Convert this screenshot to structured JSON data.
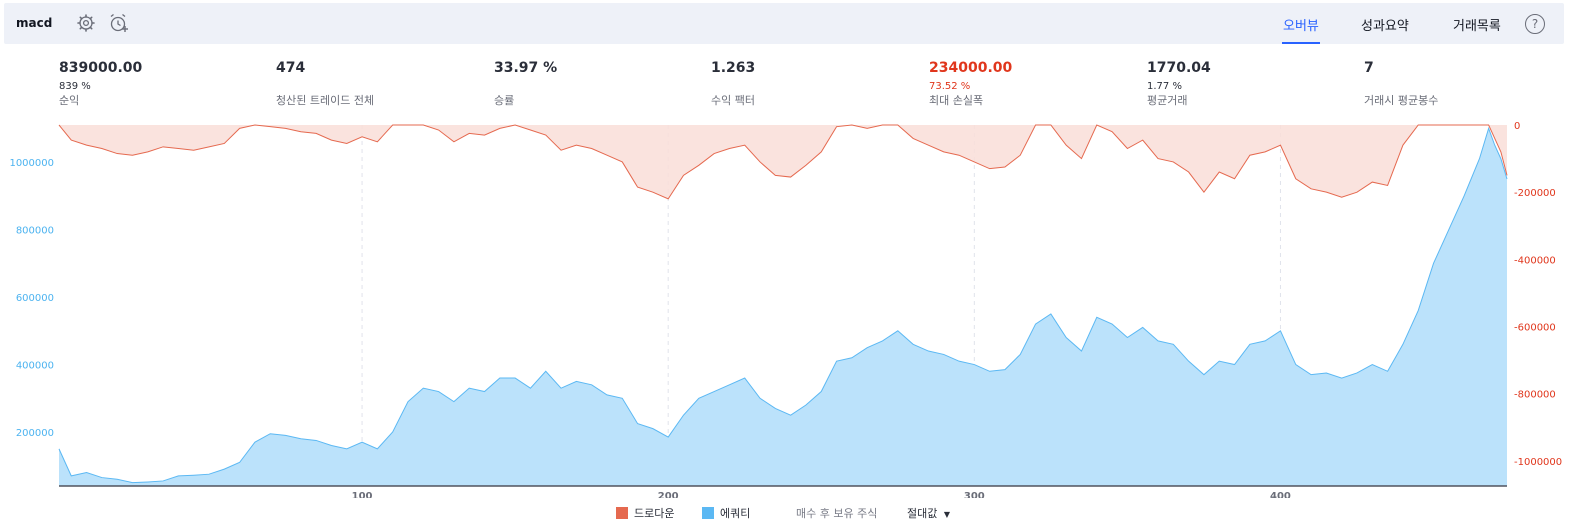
{
  "header": {
    "strategy_name": "macd",
    "tabs": [
      {
        "label": "오버뷰",
        "active": true
      },
      {
        "label": "성과요약",
        "active": false
      },
      {
        "label": "거래목록",
        "active": false
      }
    ],
    "help_label": "?"
  },
  "stats": [
    {
      "value": "839000.00",
      "sub": "839 %",
      "label": "순익"
    },
    {
      "value": "474",
      "sub": "",
      "label": "청산된 트레이드 전체"
    },
    {
      "value": "33.97 %",
      "sub": "",
      "label": "승률"
    },
    {
      "value": "1.263",
      "sub": "",
      "label": "수익 팩터"
    },
    {
      "value": "234000.00",
      "sub": "73.52 %",
      "label": "최대 손실폭",
      "highlight": true
    },
    {
      "value": "1770.04",
      "sub": "1.77 %",
      "label": "평균거래"
    },
    {
      "value": "7",
      "sub": "",
      "label": "거래시 평균봉수"
    }
  ],
  "colors": {
    "equity_line": "#5bb8f3",
    "equity_fill": "#bbe2fb",
    "drawdown_line": "#e5694f",
    "drawdown_fill": "#f9ded8",
    "left_axis_text": "#4cb3f0",
    "right_axis_text": "#e0361c",
    "accent": "#2962ff"
  },
  "legend": {
    "drawdown": "드로다운",
    "equity": "에쿼티",
    "buy_hold": "매수 후 보유 주식",
    "mode": "절대값"
  },
  "chart_data": {
    "type": "area",
    "x_ticks": [
      100,
      200,
      300,
      400
    ],
    "x_range": [
      1,
      474
    ],
    "left_axis": {
      "ticks": [
        200000,
        400000,
        600000,
        800000,
        1000000
      ],
      "labels": [
        "200000",
        "400000",
        "600000",
        "800000",
        "1000000"
      ],
      "range": [
        40000,
        1110000
      ]
    },
    "right_axis": {
      "ticks": [
        0,
        -200000,
        -400000,
        -600000,
        -800000,
        -1000000
      ],
      "labels": [
        "0",
        "-200000",
        "-400000",
        "-600000",
        "-800000",
        "-1000000"
      ],
      "range": [
        -1075000,
        0
      ]
    },
    "series": [
      {
        "name": "에쿼티",
        "axis": "left",
        "x": [
          1,
          5,
          10,
          15,
          20,
          25,
          30,
          35,
          40,
          45,
          50,
          55,
          60,
          65,
          70,
          75,
          80,
          85,
          90,
          95,
          100,
          105,
          110,
          115,
          120,
          125,
          130,
          135,
          140,
          145,
          150,
          155,
          160,
          165,
          170,
          175,
          180,
          185,
          190,
          195,
          200,
          205,
          210,
          215,
          220,
          225,
          230,
          235,
          240,
          245,
          250,
          255,
          260,
          265,
          270,
          275,
          280,
          285,
          290,
          295,
          300,
          305,
          310,
          315,
          320,
          325,
          330,
          335,
          340,
          345,
          350,
          355,
          360,
          365,
          370,
          375,
          380,
          385,
          390,
          395,
          400,
          405,
          410,
          415,
          420,
          425,
          430,
          435,
          440,
          445,
          450,
          455,
          460,
          465,
          468,
          470,
          472,
          474
        ],
        "values": [
          150000,
          70000,
          80000,
          65000,
          60000,
          50000,
          52000,
          55000,
          70000,
          72000,
          75000,
          90000,
          110000,
          170000,
          195000,
          190000,
          180000,
          175000,
          160000,
          150000,
          170000,
          150000,
          200000,
          290000,
          330000,
          320000,
          290000,
          330000,
          320000,
          360000,
          360000,
          330000,
          380000,
          330000,
          350000,
          340000,
          310000,
          300000,
          225000,
          210000,
          185000,
          250000,
          300000,
          320000,
          340000,
          360000,
          300000,
          270000,
          250000,
          280000,
          320000,
          410000,
          420000,
          450000,
          470000,
          500000,
          460000,
          440000,
          430000,
          410000,
          400000,
          380000,
          385000,
          430000,
          520000,
          550000,
          480000,
          440000,
          540000,
          520000,
          480000,
          510000,
          470000,
          460000,
          410000,
          370000,
          410000,
          400000,
          460000,
          470000,
          500000,
          400000,
          370000,
          375000,
          360000,
          375000,
          400000,
          380000,
          460000,
          560000,
          700000,
          800000,
          900000,
          1010000,
          1100000,
          1050000,
          1010000,
          950000
        ]
      },
      {
        "name": "드로다운",
        "axis": "right",
        "x": [
          1,
          5,
          10,
          15,
          20,
          25,
          30,
          35,
          40,
          45,
          50,
          55,
          60,
          65,
          70,
          75,
          80,
          85,
          90,
          95,
          100,
          105,
          110,
          115,
          120,
          125,
          130,
          135,
          140,
          145,
          150,
          155,
          160,
          165,
          170,
          175,
          180,
          185,
          190,
          195,
          200,
          205,
          210,
          215,
          220,
          225,
          230,
          235,
          240,
          245,
          250,
          255,
          260,
          265,
          270,
          275,
          280,
          285,
          290,
          295,
          300,
          305,
          310,
          315,
          320,
          325,
          330,
          335,
          340,
          345,
          350,
          355,
          360,
          365,
          370,
          375,
          380,
          385,
          390,
          395,
          400,
          405,
          410,
          415,
          420,
          425,
          430,
          435,
          440,
          445,
          450,
          455,
          460,
          465,
          468,
          470,
          472,
          474
        ],
        "values": [
          0,
          -45000,
          -60000,
          -70000,
          -85000,
          -90000,
          -80000,
          -65000,
          -70000,
          -75000,
          -65000,
          -55000,
          -10000,
          0,
          -5000,
          -10000,
          -20000,
          -25000,
          -45000,
          -55000,
          -35000,
          -50000,
          0,
          0,
          0,
          -15000,
          -50000,
          -25000,
          -30000,
          -10000,
          0,
          -15000,
          -30000,
          -75000,
          -60000,
          -70000,
          -90000,
          -110000,
          -185000,
          -200000,
          -220000,
          -150000,
          -120000,
          -85000,
          -70000,
          -60000,
          -110000,
          -150000,
          -155000,
          -120000,
          -80000,
          -5000,
          0,
          -10000,
          0,
          0,
          -40000,
          -60000,
          -80000,
          -90000,
          -110000,
          -130000,
          -125000,
          -90000,
          0,
          0,
          -60000,
          -100000,
          0,
          -20000,
          -70000,
          -45000,
          -100000,
          -110000,
          -140000,
          -200000,
          -140000,
          -160000,
          -90000,
          -80000,
          -60000,
          -160000,
          -190000,
          -200000,
          -215000,
          -200000,
          -170000,
          -180000,
          -60000,
          0,
          0,
          0,
          0,
          0,
          0,
          -40000,
          -80000,
          -150000
        ]
      }
    ]
  }
}
